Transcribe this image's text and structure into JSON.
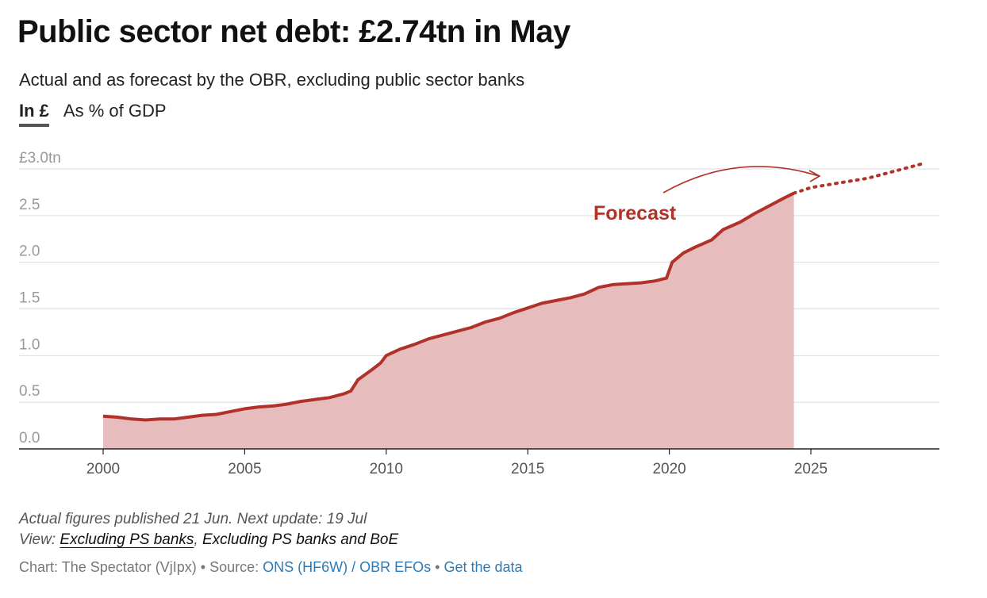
{
  "title": "Public sector net debt: £2.74tn in May",
  "subtitle": "Actual and as forecast by the OBR, excluding public sector banks",
  "tabs": [
    {
      "label": "In £",
      "active": true
    },
    {
      "label": "As % of GDP",
      "active": false
    }
  ],
  "colors": {
    "series": "#b0322a",
    "area": "#e6bcbc",
    "grid": "#dddddd",
    "axis": "#222222",
    "link": "#2b7bb9"
  },
  "chart_data": {
    "type": "area",
    "y_axis": {
      "min": 0,
      "max": 3.0,
      "ticks": [
        0,
        0.5,
        1.0,
        1.5,
        2.0,
        2.5,
        3.0
      ],
      "tick_labels": [
        "0.0",
        "0.5",
        "1.0",
        "1.5",
        "2.0",
        "2.5",
        "£3.0tn"
      ]
    },
    "x_axis": {
      "min": 1997.5,
      "max": 2029.5,
      "ticks": [
        2000,
        2005,
        2010,
        2015,
        2020,
        2025
      ],
      "tick_labels": [
        "2000",
        "2005",
        "2010",
        "2015",
        "2020",
        "2025"
      ]
    },
    "grid": true,
    "series": [
      {
        "kind": "actual",
        "points": [
          [
            2000.0,
            0.35
          ],
          [
            2000.5,
            0.34
          ],
          [
            2001.0,
            0.32
          ],
          [
            2001.5,
            0.31
          ],
          [
            2002.0,
            0.32
          ],
          [
            2002.5,
            0.32
          ],
          [
            2003.0,
            0.34
          ],
          [
            2003.5,
            0.36
          ],
          [
            2004.0,
            0.37
          ],
          [
            2004.5,
            0.4
          ],
          [
            2005.0,
            0.43
          ],
          [
            2005.5,
            0.45
          ],
          [
            2006.0,
            0.46
          ],
          [
            2006.5,
            0.48
          ],
          [
            2007.0,
            0.51
          ],
          [
            2007.5,
            0.53
          ],
          [
            2008.0,
            0.55
          ],
          [
            2008.5,
            0.59
          ],
          [
            2008.75,
            0.62
          ],
          [
            2009.0,
            0.74
          ],
          [
            2009.5,
            0.85
          ],
          [
            2009.8,
            0.92
          ],
          [
            2010.0,
            1.0
          ],
          [
            2010.5,
            1.07
          ],
          [
            2011.0,
            1.12
          ],
          [
            2011.5,
            1.18
          ],
          [
            2012.0,
            1.22
          ],
          [
            2012.5,
            1.26
          ],
          [
            2013.0,
            1.3
          ],
          [
            2013.5,
            1.36
          ],
          [
            2014.0,
            1.4
          ],
          [
            2014.5,
            1.46
          ],
          [
            2015.0,
            1.51
          ],
          [
            2015.5,
            1.56
          ],
          [
            2016.0,
            1.59
          ],
          [
            2016.5,
            1.62
          ],
          [
            2017.0,
            1.66
          ],
          [
            2017.5,
            1.73
          ],
          [
            2018.0,
            1.76
          ],
          [
            2018.5,
            1.77
          ],
          [
            2019.0,
            1.78
          ],
          [
            2019.5,
            1.8
          ],
          [
            2019.9,
            1.83
          ],
          [
            2020.1,
            2.0
          ],
          [
            2020.5,
            2.1
          ],
          [
            2020.9,
            2.16
          ],
          [
            2021.5,
            2.24
          ],
          [
            2021.9,
            2.35
          ],
          [
            2022.5,
            2.43
          ],
          [
            2023.0,
            2.52
          ],
          [
            2023.5,
            2.6
          ],
          [
            2024.0,
            2.68
          ],
          [
            2024.4,
            2.74
          ]
        ]
      },
      {
        "kind": "forecast",
        "points": [
          [
            2024.4,
            2.74
          ],
          [
            2025.0,
            2.8
          ],
          [
            2026.0,
            2.85
          ],
          [
            2027.0,
            2.9
          ],
          [
            2028.0,
            2.98
          ],
          [
            2029.0,
            3.06
          ]
        ]
      }
    ],
    "annotations": [
      {
        "text": "Forecast"
      }
    ]
  },
  "footer": {
    "note": "Actual figures published 21 Jun. Next update: 19 Jul",
    "view_label": "View:",
    "view_options": [
      {
        "label": "Excluding PS banks",
        "active": true
      },
      {
        "label": "Excluding PS banks and BoE",
        "active": false
      }
    ],
    "source": {
      "chart_by": "Chart: The Spectator (VjIpx)",
      "separator": " • ",
      "source_label": "Source: ",
      "source_link": "ONS (HF6W) / OBR EFOs",
      "data_link": "Get the data"
    }
  }
}
